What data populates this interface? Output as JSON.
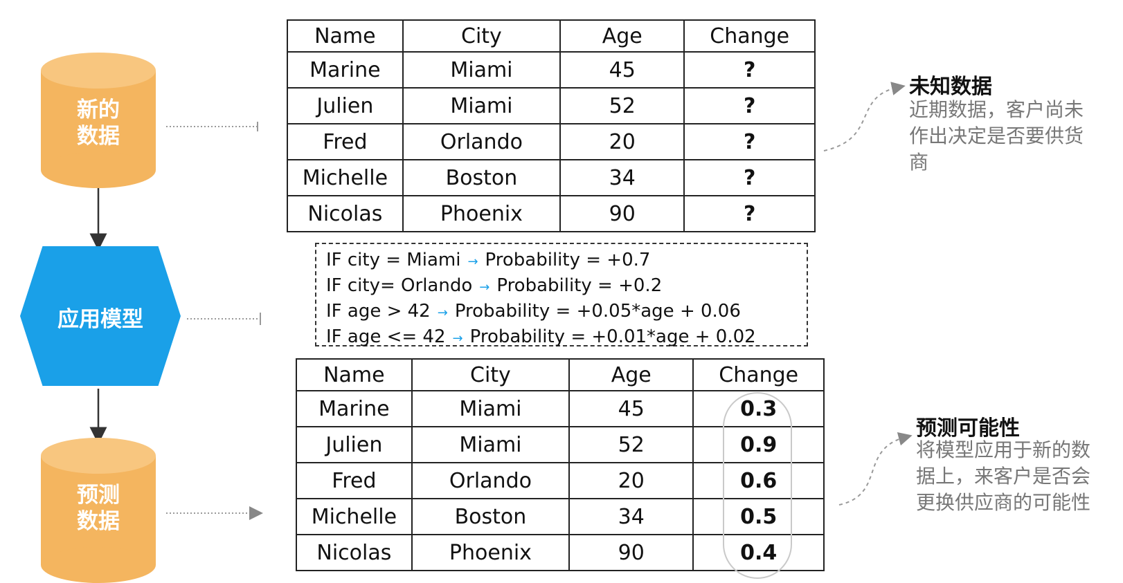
{
  "cylinders": {
    "new_data": "新的\n数据",
    "predicted_data": "预测\n数据"
  },
  "model": {
    "label": "应用模型"
  },
  "table_headers": [
    "Name",
    "City",
    "Age",
    "Change"
  ],
  "unknown_table": {
    "rows": [
      [
        "Marine",
        "Miami",
        "45",
        "?"
      ],
      [
        "Julien",
        "Miami",
        "52",
        "?"
      ],
      [
        "Fred",
        "Orlando",
        "20",
        "?"
      ],
      [
        "Michelle",
        "Boston",
        "34",
        "?"
      ],
      [
        "Nicolas",
        "Phoenix",
        "90",
        "?"
      ]
    ]
  },
  "rules": [
    {
      "cond": "IF city = Miami",
      "result": "Probability = +0.7"
    },
    {
      "cond": "IF city= Orlando",
      "result": "Probability = +0.2"
    },
    {
      "cond": "IF age > 42",
      "result": "Probability = +0.05*age + 0.06"
    },
    {
      "cond": "IF age <= 42",
      "result": "Probability = +0.01*age + 0.02"
    }
  ],
  "predicted_table": {
    "rows": [
      [
        "Marine",
        "Miami",
        "45",
        "0.3"
      ],
      [
        "Julien",
        "Miami",
        "52",
        "0.9"
      ],
      [
        "Fred",
        "Orlando",
        "20",
        "0.6"
      ],
      [
        "Michelle",
        "Boston",
        "34",
        "0.5"
      ],
      [
        "Nicolas",
        "Phoenix",
        "90",
        "0.4"
      ]
    ]
  },
  "notes": {
    "unknown": {
      "title": "未知数据",
      "body": "近期数据，客户尚未\n作出决定是否要供货\n商"
    },
    "predict": {
      "title": "预测可能性",
      "body": "将模型应用于新的数\n据上，来客户是否会\n更换供应商的可能性"
    }
  },
  "colors": {
    "cylinder": "#f4b55f",
    "hexagon": "#1aa0e8",
    "arrow": "#1aa0e8"
  }
}
